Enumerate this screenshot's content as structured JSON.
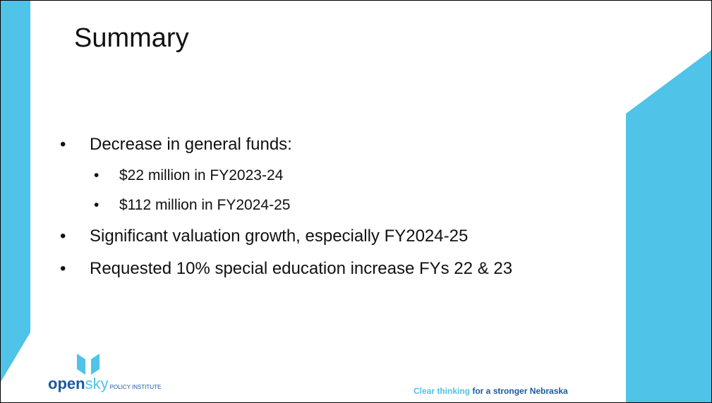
{
  "title": "Summary",
  "bullets": [
    {
      "text": "Decrease in general funds:",
      "sub": [
        "$22 million in FY2023-24",
        "$112 million in FY2024-25"
      ]
    },
    {
      "text": "Significant valuation growth, especially FY2024-25",
      "sub": []
    },
    {
      "text": "Requested 10% special education increase FYs 22 & 23",
      "sub": []
    }
  ],
  "logo": {
    "open": "open",
    "sky": "sky",
    "institute": "POLICY INSTITUTE"
  },
  "tagline": {
    "part1": "Clear thinking",
    "part2": " for a stronger Nebraska"
  }
}
